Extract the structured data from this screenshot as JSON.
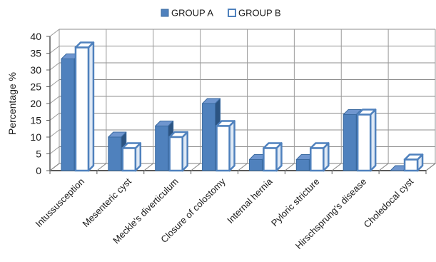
{
  "chart_data": {
    "type": "bar",
    "title": "",
    "xlabel": "",
    "ylabel": "Percentage %",
    "ylim": [
      0,
      40
    ],
    "yticks": [
      0,
      5,
      10,
      15,
      20,
      25,
      30,
      35,
      40
    ],
    "grid": true,
    "legend_position": "top-center",
    "categories": [
      "Intussusception",
      "Mesenteric cyst",
      "Meckle's diverticulum",
      "Closure of colostomy",
      "Internal hernia",
      "Pyloric stricture",
      "Hirschsprung's disease",
      "Choledocal cyst"
    ],
    "series": [
      {
        "name": "GROUP A",
        "color": "#4f81bd",
        "values": [
          33.3,
          10.0,
          13.3,
          20.0,
          3.3,
          3.3,
          16.7,
          0
        ]
      },
      {
        "name": "GROUP B",
        "color": "#ffffff",
        "edge_color": "#4f81bd",
        "values": [
          36.7,
          6.7,
          10.0,
          13.3,
          6.7,
          6.7,
          16.7,
          3.3
        ]
      }
    ]
  }
}
